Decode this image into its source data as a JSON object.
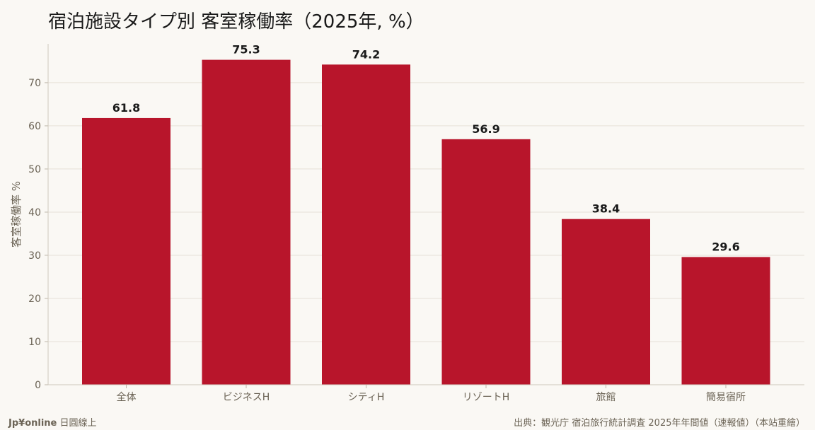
{
  "title": "宿泊施設タイプ別 客室稼働率（2025年, %）",
  "footer": {
    "brand_bold": "Jp¥online",
    "brand_rest": "日圓線上",
    "source": "出典：観光庁 宿泊旅行統計調査 2025年年間値（速報値）（本站重繪）"
  },
  "colors": {
    "bar": "#b8152b",
    "background": "#faf8f4",
    "grid": "#e6e1d8",
    "axis_text": "#6b6355",
    "label_text": "#1a1a1a"
  },
  "chart_data": {
    "type": "bar",
    "title": "宿泊施設タイプ別 客室稼働率（2025年, %）",
    "ylabel": "客室稼働率 %",
    "xlabel": "",
    "categories": [
      "全体",
      "ビジネスH",
      "シティH",
      "リゾートH",
      "旅館",
      "簡易宿所"
    ],
    "values": [
      61.8,
      75.3,
      74.2,
      56.9,
      38.4,
      29.6
    ],
    "value_labels": [
      "61.8",
      "75.3",
      "74.2",
      "56.9",
      "38.4",
      "29.6"
    ],
    "yticks": [
      "0",
      "10",
      "20",
      "30",
      "40",
      "50",
      "60",
      "70"
    ],
    "ylim": [
      0,
      79
    ],
    "grid": true
  }
}
